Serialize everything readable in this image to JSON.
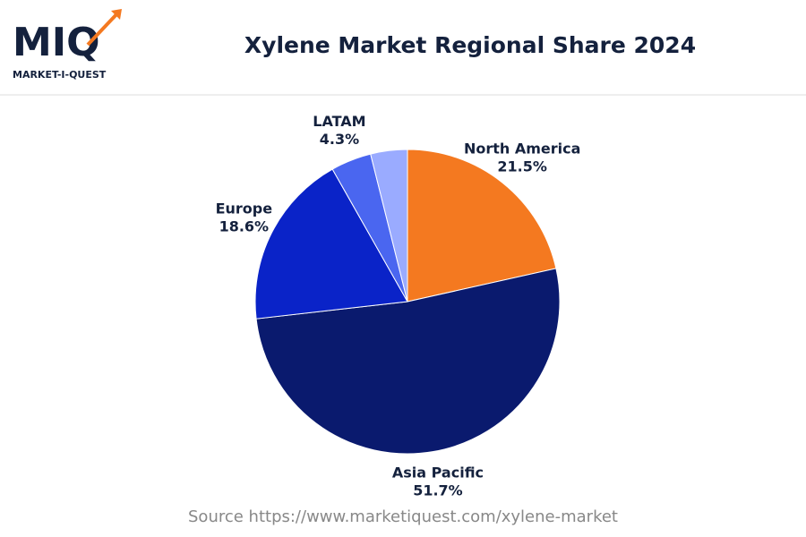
{
  "logo": {
    "mark": "MIQ",
    "name": "MARKET-I-QUEST"
  },
  "chart_data": {
    "type": "pie",
    "title": "Xylene Market Regional Share 2024",
    "categories": [
      "North America",
      "Asia Pacific",
      "Europe",
      "LATAM",
      null
    ],
    "values": [
      21.5,
      51.7,
      18.6,
      4.3,
      3.9
    ],
    "value_labels": [
      "21.5%",
      "51.7%",
      "18.6%",
      "4.3%",
      null
    ],
    "colors": [
      "#f47920",
      "#0a1a6e",
      "#0a23c8",
      "#4a66f0",
      "#9aabff"
    ],
    "source": "Source https://www.marketiquest.com/xylene-market"
  }
}
